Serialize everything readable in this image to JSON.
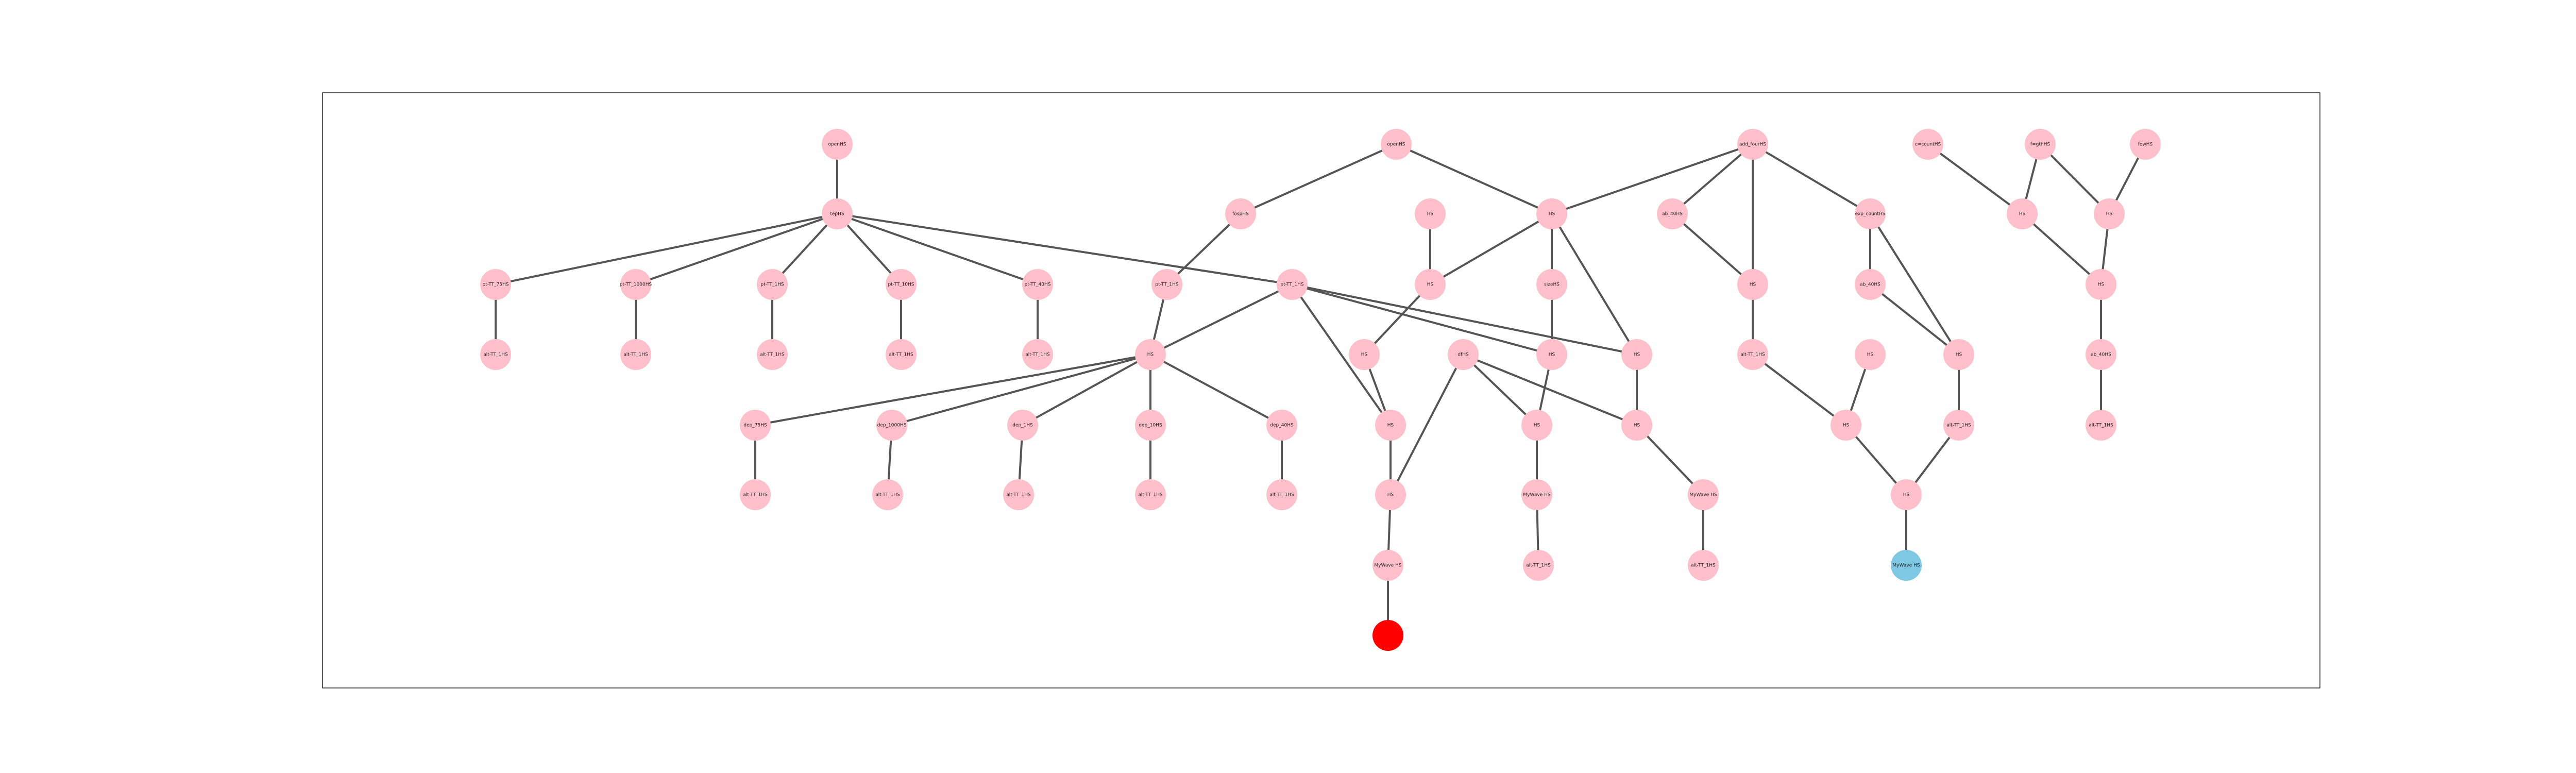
{
  "colors": {
    "default": "#ffc0cb",
    "highlight": "#7ec8e3",
    "target": "#ff0000"
  },
  "nodes": [
    {
      "id": "n1",
      "label": "openHS"
    },
    {
      "id": "n2",
      "label": "tepHS"
    },
    {
      "id": "n3",
      "label": "pt-TT_75HS"
    },
    {
      "id": "n4",
      "label": "pt-TT_1000HS"
    },
    {
      "id": "n5",
      "label": "pt-TT_1HS"
    },
    {
      "id": "n6",
      "label": "pt-TT_10HS"
    },
    {
      "id": "n7",
      "label": "pt-TT_40HS"
    },
    {
      "id": "n8",
      "label": "alt-TT_1HS"
    },
    {
      "id": "n9",
      "label": "alt-TT_1HS"
    },
    {
      "id": "n10",
      "label": "alt-TT_1HS"
    },
    {
      "id": "n11",
      "label": "alt-TT_1HS"
    },
    {
      "id": "n12",
      "label": "alt-TT_1HS"
    },
    {
      "id": "n13",
      "label": "openHS"
    },
    {
      "id": "n14",
      "label": "fospHS"
    },
    {
      "id": "n15",
      "label": "pt-TT_1HS"
    },
    {
      "id": "n16",
      "label": "pt-TT_1HS"
    },
    {
      "id": "n17",
      "label": "HS"
    },
    {
      "id": "n18",
      "label": "dep_75HS"
    },
    {
      "id": "n19",
      "label": "dep_1000HS"
    },
    {
      "id": "n20",
      "label": "dep_1HS"
    },
    {
      "id": "n21",
      "label": "dep_10HS"
    },
    {
      "id": "n22",
      "label": "dep_40HS"
    },
    {
      "id": "n23",
      "label": "alt-TT_1HS"
    },
    {
      "id": "n24",
      "label": "alt-TT_1HS"
    },
    {
      "id": "n25",
      "label": "alt-TT_1HS"
    },
    {
      "id": "n26",
      "label": "alt-TT_1HS"
    },
    {
      "id": "n27",
      "label": "alt-TT_1HS"
    },
    {
      "id": "n28",
      "label": "HS"
    },
    {
      "id": "n29",
      "label": "HS"
    },
    {
      "id": "n30",
      "label": "HS"
    },
    {
      "id": "n31",
      "label": "sizeHS"
    },
    {
      "id": "n32",
      "label": "HS"
    },
    {
      "id": "n33",
      "label": "HS"
    },
    {
      "id": "n34",
      "label": "HS"
    },
    {
      "id": "n35",
      "label": "HS"
    },
    {
      "id": "n36",
      "label": "HS"
    },
    {
      "id": "n37",
      "label": "MyWave HS"
    },
    {
      "id": "n38",
      "label": ""
    },
    {
      "id": "n39",
      "label": "dfHS"
    },
    {
      "id": "n40",
      "label": "HS"
    },
    {
      "id": "n41",
      "label": "MyWave HS"
    },
    {
      "id": "n42",
      "label": "alt-TT_1HS"
    },
    {
      "id": "n43",
      "label": "HS"
    },
    {
      "id": "n44",
      "label": "HS"
    },
    {
      "id": "n45",
      "label": "MyWave HS"
    },
    {
      "id": "n46",
      "label": "alt-TT_1HS"
    },
    {
      "id": "n47",
      "label": "add_fourHS"
    },
    {
      "id": "n48",
      "label": "ab_40HS"
    },
    {
      "id": "n49",
      "label": "HS"
    },
    {
      "id": "n50",
      "label": "alt-TT_1HS"
    },
    {
      "id": "n51",
      "label": "exp_countHS"
    },
    {
      "id": "n52",
      "label": "ab_40HS"
    },
    {
      "id": "n53",
      "label": "HS"
    },
    {
      "id": "n54",
      "label": "HS"
    },
    {
      "id": "n55",
      "label": "alt-TT_1HS"
    },
    {
      "id": "n56",
      "label": "HS"
    },
    {
      "id": "n57",
      "label": "HS"
    },
    {
      "id": "n58",
      "label": "MyWave HS"
    },
    {
      "id": "n59",
      "label": "c=countHS"
    },
    {
      "id": "n60",
      "label": "f=gthHS"
    },
    {
      "id": "n61",
      "label": "fowHS"
    },
    {
      "id": "n62",
      "label": "HS"
    },
    {
      "id": "n63",
      "label": "HS"
    },
    {
      "id": "n64",
      "label": "HS"
    },
    {
      "id": "n65",
      "label": "ab_40HS"
    },
    {
      "id": "n66",
      "label": "alt-TT_1HS"
    }
  ],
  "edges": [
    [
      "n1",
      "n2"
    ],
    [
      "n2",
      "n3"
    ],
    [
      "n2",
      "n4"
    ],
    [
      "n2",
      "n5"
    ],
    [
      "n2",
      "n6"
    ],
    [
      "n2",
      "n7"
    ],
    [
      "n2",
      "n16"
    ],
    [
      "n3",
      "n8"
    ],
    [
      "n4",
      "n9"
    ],
    [
      "n5",
      "n10"
    ],
    [
      "n6",
      "n11"
    ],
    [
      "n7",
      "n12"
    ],
    [
      "n13",
      "n14"
    ],
    [
      "n13",
      "n32"
    ],
    [
      "n14",
      "n15"
    ],
    [
      "n15",
      "n17"
    ],
    [
      "n16",
      "n17"
    ],
    [
      "n16",
      "n33"
    ],
    [
      "n16",
      "n35"
    ],
    [
      "n16",
      "n36"
    ],
    [
      "n17",
      "n18"
    ],
    [
      "n17",
      "n19"
    ],
    [
      "n17",
      "n20"
    ],
    [
      "n17",
      "n21"
    ],
    [
      "n17",
      "n22"
    ],
    [
      "n18",
      "n23"
    ],
    [
      "n19",
      "n24"
    ],
    [
      "n20",
      "n25"
    ],
    [
      "n21",
      "n26"
    ],
    [
      "n22",
      "n27"
    ],
    [
      "n28",
      "n29"
    ],
    [
      "n32",
      "n29"
    ],
    [
      "n29",
      "n30"
    ],
    [
      "n30",
      "n33"
    ],
    [
      "n33",
      "n34"
    ],
    [
      "n34",
      "n37"
    ],
    [
      "n37",
      "n38"
    ],
    [
      "n32",
      "n31"
    ],
    [
      "n31",
      "n35"
    ],
    [
      "n35",
      "n40"
    ],
    [
      "n40",
      "n41"
    ],
    [
      "n41",
      "n42"
    ],
    [
      "n32",
      "n36"
    ],
    [
      "n36",
      "n43"
    ],
    [
      "n43",
      "n44"
    ],
    [
      "n44",
      "n45"
    ],
    [
      "n45",
      "n46"
    ],
    [
      "n39",
      "n40"
    ],
    [
      "n39",
      "n43"
    ],
    [
      "n39",
      "n34"
    ],
    [
      "n47",
      "n32"
    ],
    [
      "n47",
      "n48"
    ],
    [
      "n47",
      "n49"
    ],
    [
      "n47",
      "n51"
    ],
    [
      "n48",
      "n49"
    ],
    [
      "n49",
      "n50"
    ],
    [
      "n50",
      "n53"
    ],
    [
      "n51",
      "n52"
    ],
    [
      "n51",
      "n54"
    ],
    [
      "n52",
      "n54"
    ],
    [
      "n54",
      "n55"
    ],
    [
      "n55",
      "n57"
    ],
    [
      "n56",
      "n53"
    ],
    [
      "n53",
      "n57"
    ],
    [
      "n57",
      "n58"
    ],
    [
      "n59",
      "n62"
    ],
    [
      "n60",
      "n62"
    ],
    [
      "n60",
      "n63"
    ],
    [
      "n61",
      "n63"
    ],
    [
      "n62",
      "n64"
    ],
    [
      "n63",
      "n64"
    ],
    [
      "n64",
      "n65"
    ],
    [
      "n65",
      "n66"
    ]
  ],
  "highlight_node": "n58",
  "target_node": "n38"
}
